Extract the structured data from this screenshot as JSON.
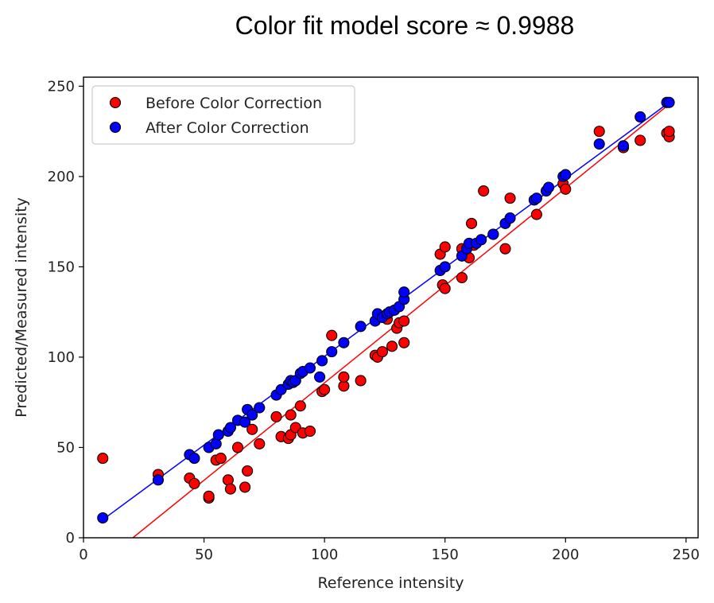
{
  "chart_data": {
    "type": "scatter",
    "title": "Color fit model score ≈ 0.9988",
    "xlabel": "Reference intensity",
    "ylabel": "Predicted/Measured intensity",
    "xlim": [
      0,
      255
    ],
    "ylim": [
      0,
      255
    ],
    "xticks": [
      0,
      50,
      100,
      150,
      200,
      250
    ],
    "yticks": [
      0,
      50,
      100,
      150,
      200,
      250
    ],
    "grid": false,
    "legend_position": "top-left",
    "series": [
      {
        "name": "Before Color Correction",
        "color": "#ff0000",
        "fit_line": [
          [
            20.5,
            0
          ],
          [
            243,
            240
          ]
        ],
        "points": [
          [
            8,
            44
          ],
          [
            31,
            35
          ],
          [
            44,
            33
          ],
          [
            46,
            30
          ],
          [
            52,
            22
          ],
          [
            52,
            23
          ],
          [
            55,
            43
          ],
          [
            57,
            44
          ],
          [
            60,
            32
          ],
          [
            61,
            27
          ],
          [
            64,
            50
          ],
          [
            67,
            28
          ],
          [
            68,
            37
          ],
          [
            70,
            60
          ],
          [
            73,
            52
          ],
          [
            80,
            67
          ],
          [
            82,
            56
          ],
          [
            85,
            55
          ],
          [
            86,
            57
          ],
          [
            86,
            68
          ],
          [
            88,
            61
          ],
          [
            90,
            73
          ],
          [
            91,
            58
          ],
          [
            94,
            59
          ],
          [
            99,
            81
          ],
          [
            100,
            82
          ],
          [
            103,
            112
          ],
          [
            108,
            84
          ],
          [
            108,
            89
          ],
          [
            115,
            87
          ],
          [
            121,
            101
          ],
          [
            122,
            100
          ],
          [
            124,
            103
          ],
          [
            126,
            121
          ],
          [
            128,
            106
          ],
          [
            130,
            116
          ],
          [
            131,
            119
          ],
          [
            133,
            108
          ],
          [
            133,
            120
          ],
          [
            148,
            157
          ],
          [
            149,
            140
          ],
          [
            150,
            161
          ],
          [
            150,
            138
          ],
          [
            157,
            144
          ],
          [
            157,
            160
          ],
          [
            160,
            155
          ],
          [
            161,
            174
          ],
          [
            162,
            162
          ],
          [
            166,
            192
          ],
          [
            170,
            168
          ],
          [
            175,
            160
          ],
          [
            177,
            188
          ],
          [
            188,
            179
          ],
          [
            199,
            196
          ],
          [
            200,
            193
          ],
          [
            214,
            225
          ],
          [
            224,
            216
          ],
          [
            231,
            220
          ],
          [
            242,
            224
          ],
          [
            243,
            222
          ],
          [
            243,
            225
          ]
        ]
      },
      {
        "name": "After Color Correction",
        "color": "#0000ff",
        "fit_line": [
          [
            8,
            10
          ],
          [
            243,
            241
          ]
        ],
        "points": [
          [
            8,
            11
          ],
          [
            31,
            32
          ],
          [
            44,
            46
          ],
          [
            46,
            44
          ],
          [
            52,
            50
          ],
          [
            55,
            52
          ],
          [
            56,
            57
          ],
          [
            60,
            59
          ],
          [
            61,
            61
          ],
          [
            64,
            65
          ],
          [
            67,
            64
          ],
          [
            68,
            71
          ],
          [
            70,
            68
          ],
          [
            73,
            72
          ],
          [
            80,
            79
          ],
          [
            82,
            82
          ],
          [
            85,
            85
          ],
          [
            86,
            87
          ],
          [
            87,
            86
          ],
          [
            88,
            87
          ],
          [
            90,
            91
          ],
          [
            91,
            92
          ],
          [
            94,
            94
          ],
          [
            98,
            89
          ],
          [
            99,
            98
          ],
          [
            103,
            103
          ],
          [
            108,
            108
          ],
          [
            115,
            117
          ],
          [
            121,
            120
          ],
          [
            122,
            124
          ],
          [
            124,
            122
          ],
          [
            126,
            124
          ],
          [
            127,
            125
          ],
          [
            129,
            126
          ],
          [
            131,
            128
          ],
          [
            133,
            132
          ],
          [
            133,
            136
          ],
          [
            148,
            148
          ],
          [
            150,
            150
          ],
          [
            157,
            156
          ],
          [
            159,
            160
          ],
          [
            160,
            163
          ],
          [
            163,
            163
          ],
          [
            165,
            165
          ],
          [
            170,
            168
          ],
          [
            175,
            174
          ],
          [
            177,
            177
          ],
          [
            187,
            187
          ],
          [
            188,
            188
          ],
          [
            192,
            192
          ],
          [
            193,
            194
          ],
          [
            199,
            200
          ],
          [
            200,
            201
          ],
          [
            214,
            218
          ],
          [
            224,
            217
          ],
          [
            231,
            233
          ],
          [
            242,
            241
          ],
          [
            243,
            241
          ]
        ]
      }
    ]
  }
}
